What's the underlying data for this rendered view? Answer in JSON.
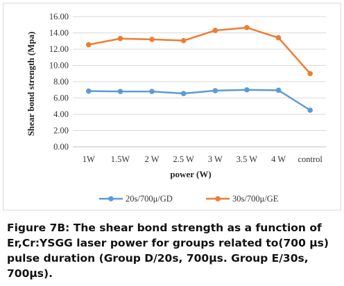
{
  "chart_data": {
    "type": "line",
    "categories": [
      "1W",
      "1.5W",
      "2 W",
      "2.5 W",
      "3 W",
      "3.5 W",
      "4 W",
      "control"
    ],
    "series": [
      {
        "name": "20s/700μ/GD",
        "color": "#5b9bd5",
        "values": [
          6.85,
          6.8,
          6.8,
          6.55,
          6.9,
          7.0,
          6.95,
          4.5
        ]
      },
      {
        "name": "30s/700μ/GE",
        "color": "#ed7d31",
        "values": [
          12.55,
          13.3,
          13.2,
          13.05,
          14.3,
          14.65,
          13.4,
          9.0
        ]
      }
    ],
    "xlabel": "power (W)",
    "ylabel": "Shear bond strength (Mpa)",
    "ylim": [
      0,
      16
    ],
    "yticks": [
      "0.00",
      "2.00",
      "4.00",
      "6.00",
      "8.00",
      "10.00",
      "12.00",
      "14.00",
      "16.00"
    ],
    "grid": true,
    "legend": "bottom"
  },
  "caption": "Figure 7B: The shear bond strength as a function of Er,Cr:YSGG laser power for groups related to(700 μs) pulse duration (Group D/20s, 700μs. Group E/30s, 700μs)."
}
